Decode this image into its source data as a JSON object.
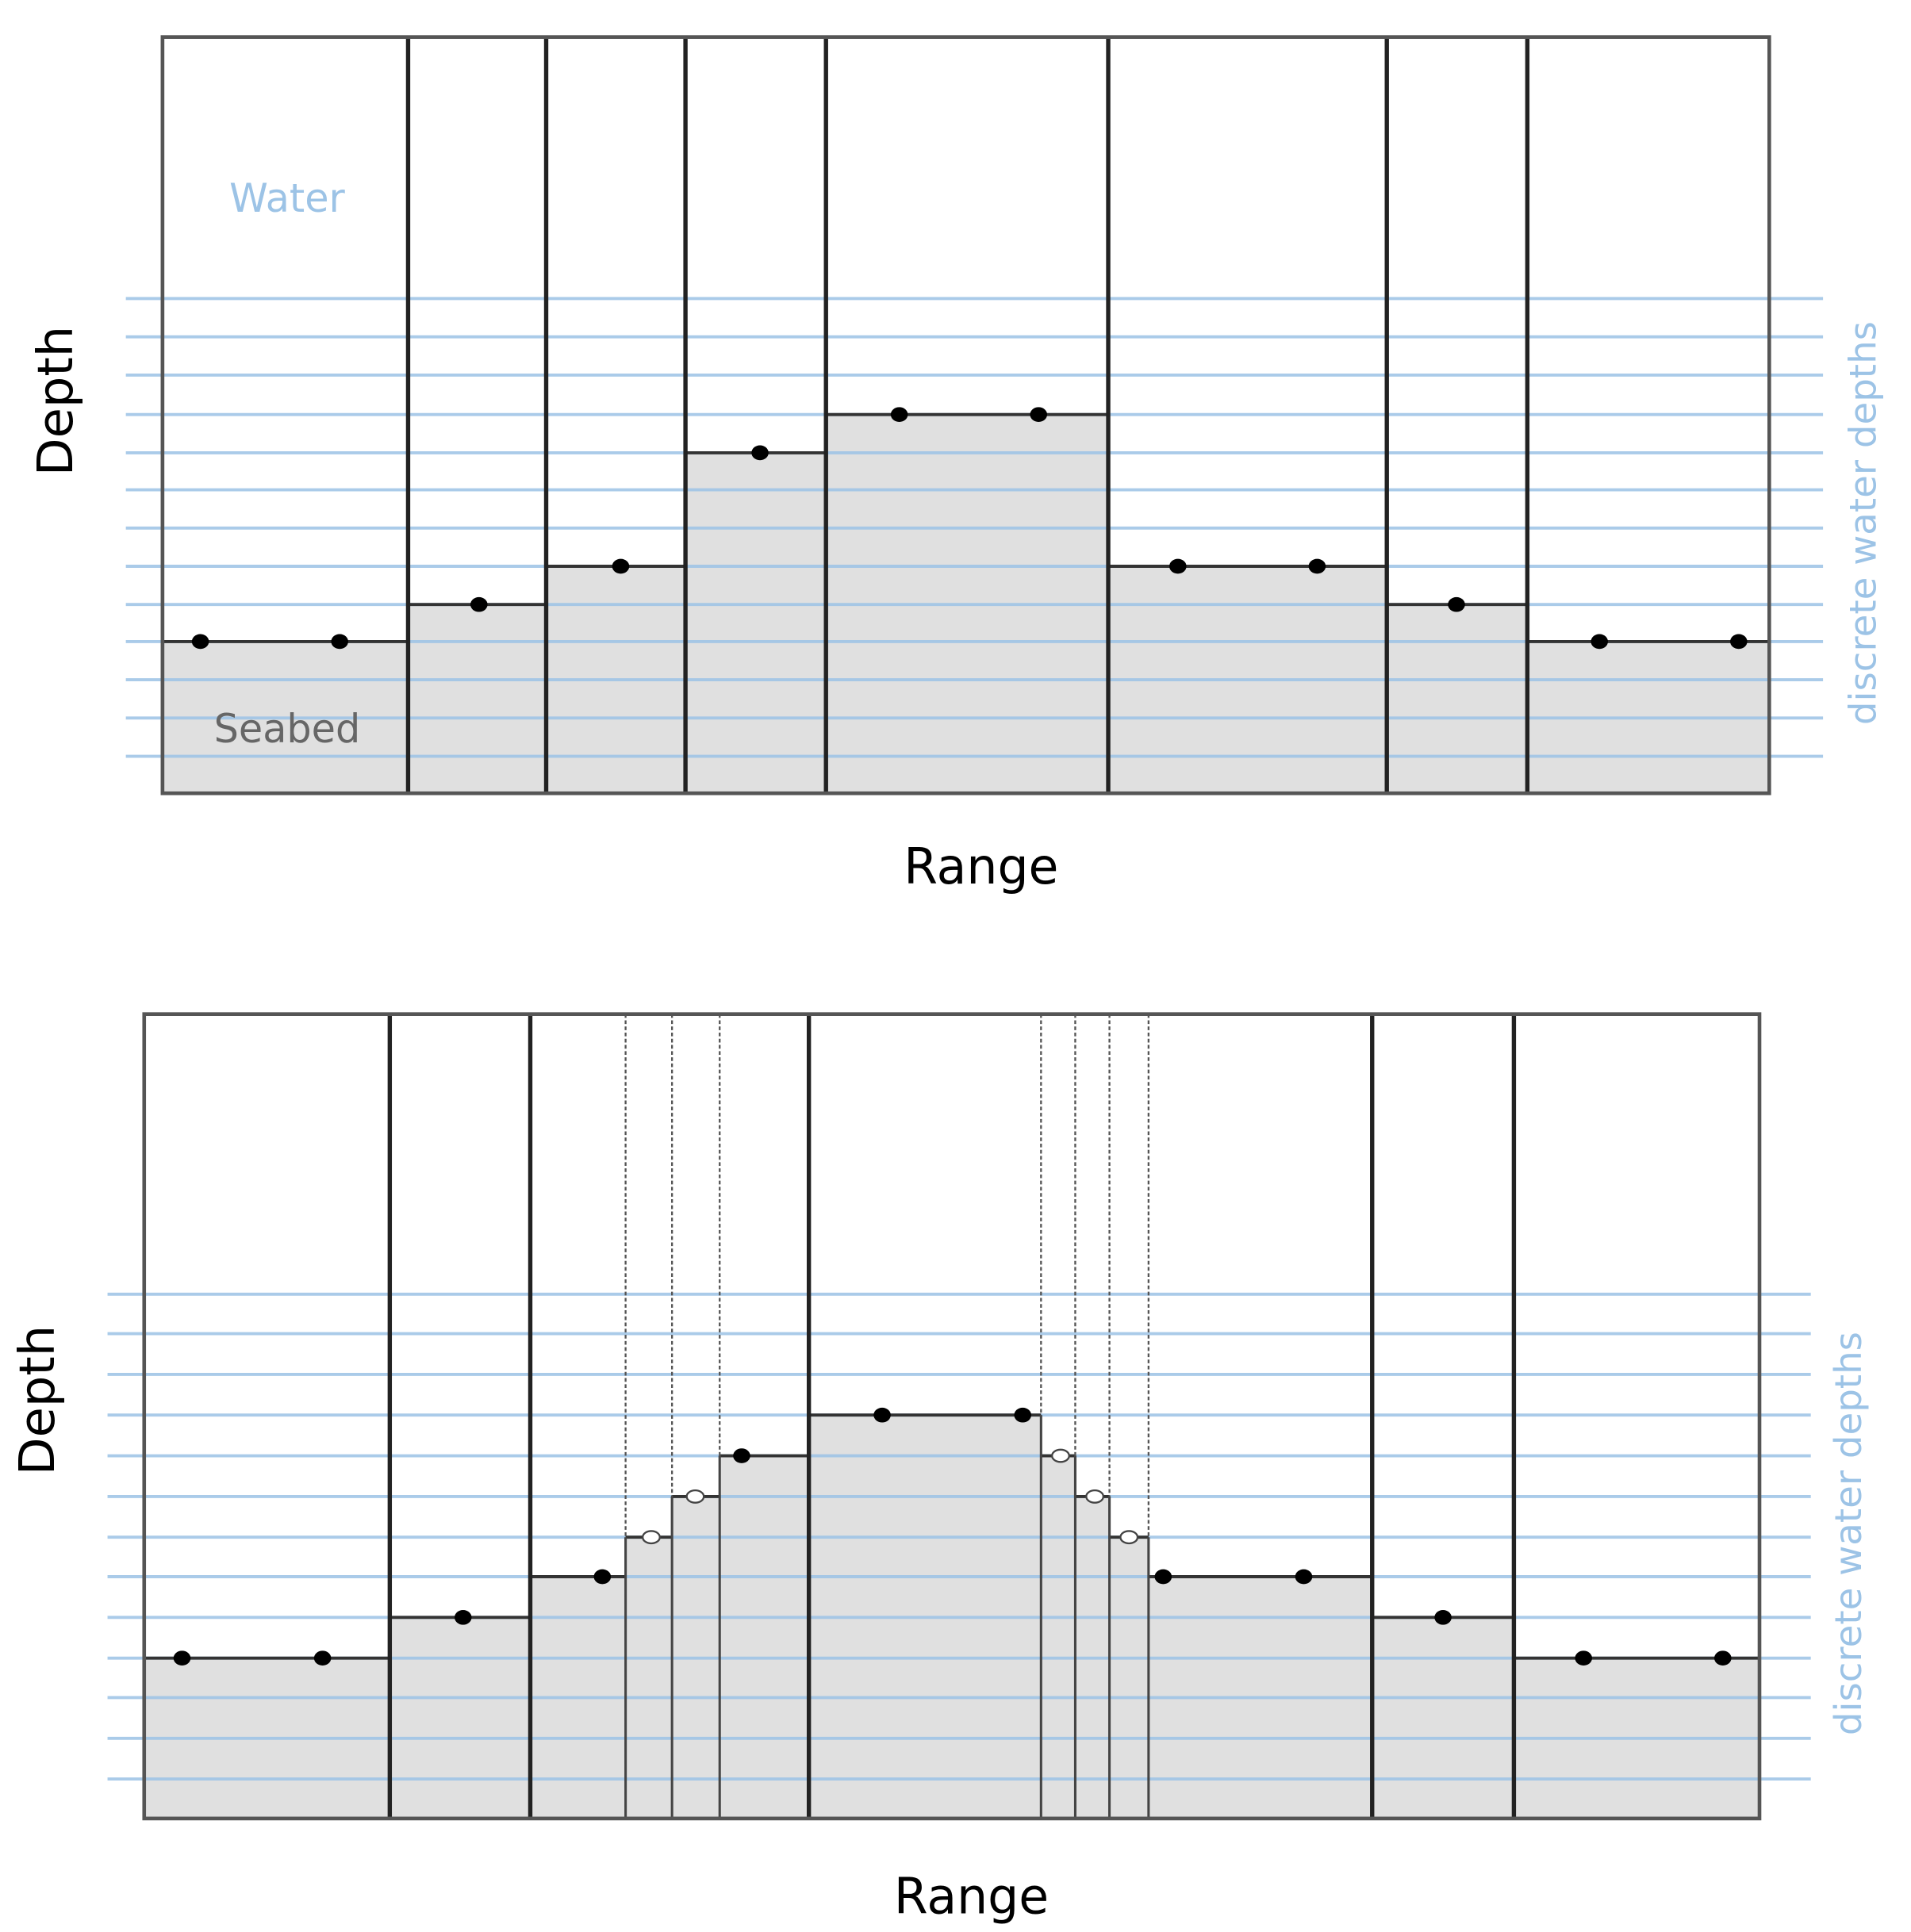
{
  "panels": [
    {
      "water_label": "Water",
      "seabed_label": "Seabed",
      "y_axis_label": "Depth",
      "x_axis_label": "Range",
      "side_label": "discrete water depths"
    },
    {
      "y_axis_label": "Depth",
      "x_axis_label": "Range",
      "side_label": "discrete water depths"
    }
  ]
}
